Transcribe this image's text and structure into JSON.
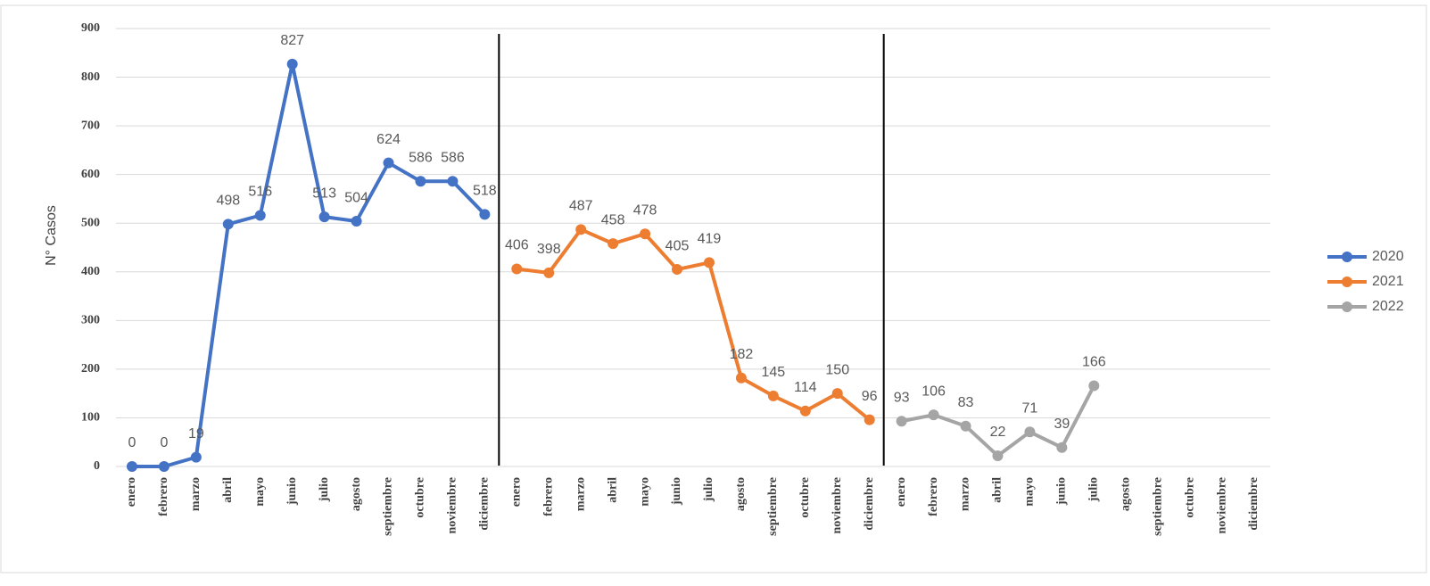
{
  "chart_data": {
    "type": "line",
    "y_label": "N° Casos",
    "categories": [
      "enero",
      "febrero",
      "marzo",
      "abril",
      "mayo",
      "junio",
      "julio",
      "agosto",
      "septiembre",
      "octubre",
      "noviembre",
      "diciembre",
      "enero",
      "febrero",
      "marzo",
      "abril",
      "mayo",
      "junio",
      "julio",
      "agosto",
      "septiembre",
      "octubre",
      "noviembre",
      "diciembre",
      "enero",
      "febrero",
      "marzo",
      "abril",
      "mayo",
      "junio",
      "julio",
      "agosto",
      "septiembre",
      "octubre",
      "noviembre",
      "diciembre"
    ],
    "series": [
      {
        "name": "2020",
        "color": "#4472c4",
        "values": [
          0,
          0,
          19,
          498,
          516,
          827,
          513,
          504,
          624,
          586,
          586,
          518,
          null,
          null,
          null,
          null,
          null,
          null,
          null,
          null,
          null,
          null,
          null,
          null,
          null,
          null,
          null,
          null,
          null,
          null,
          null,
          null,
          null,
          null,
          null,
          null
        ]
      },
      {
        "name": "2021",
        "color": "#ed7d31",
        "values": [
          null,
          null,
          null,
          null,
          null,
          null,
          null,
          null,
          null,
          null,
          null,
          null,
          406,
          398,
          487,
          458,
          478,
          405,
          419,
          182,
          145,
          114,
          150,
          96,
          null,
          null,
          null,
          null,
          null,
          null,
          null,
          null,
          null,
          null,
          null,
          null
        ]
      },
      {
        "name": "2022",
        "color": "#a5a5a5",
        "values": [
          null,
          null,
          null,
          null,
          null,
          null,
          null,
          null,
          null,
          null,
          null,
          null,
          null,
          null,
          null,
          null,
          null,
          null,
          null,
          null,
          null,
          null,
          null,
          null,
          93,
          106,
          83,
          22,
          71,
          39,
          166,
          null,
          null,
          null,
          null,
          null
        ]
      }
    ],
    "ylim": [
      0,
      900
    ],
    "yticks": [
      0,
      100,
      200,
      300,
      400,
      500,
      600,
      700,
      800,
      900
    ],
    "grid": true,
    "legend": "right"
  }
}
